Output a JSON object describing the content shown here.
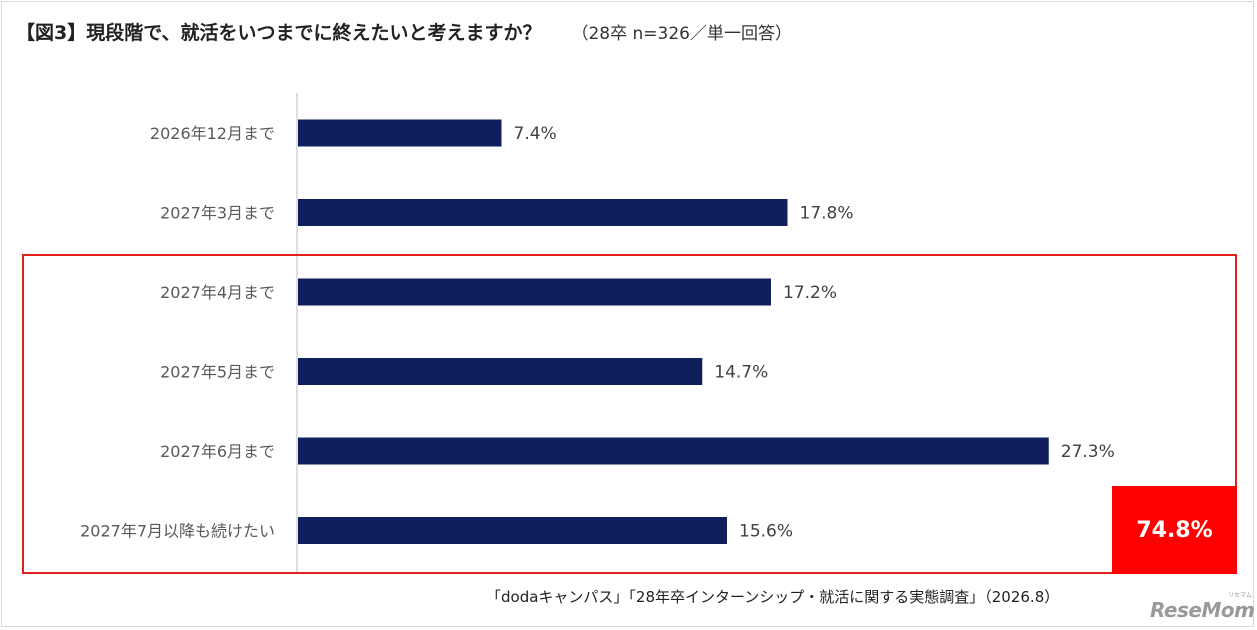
{
  "header": {
    "title": "【図3】現段階で、就活をいつまでに終えたいと考えますか？",
    "sample_note": "（28卒 n=326／単一回答）"
  },
  "chart_data": {
    "type": "bar",
    "orientation": "horizontal",
    "categories": [
      "2026年12月まで",
      "2027年3月まで",
      "2027年4月まで",
      "2027年5月まで",
      "2027年6月まで",
      "2027年7月以降も続けたい"
    ],
    "values": [
      7.4,
      17.8,
      17.2,
      14.7,
      27.3,
      15.6
    ],
    "value_labels": [
      "7.4%",
      "17.8%",
      "17.2%",
      "14.7%",
      "27.3%",
      "15.6%"
    ],
    "unit": "%",
    "xlim": [
      0,
      32
    ],
    "grid": false,
    "legend": "none",
    "bar_color": "#0e1f5b",
    "highlight": {
      "categories": [
        "2027年4月まで",
        "2027年5月まで",
        "2027年6月まで",
        "2027年7月以降も続けたい"
      ],
      "total_label": "74.8%",
      "box_color": "#e0201b",
      "badge_color": "#ff0000"
    }
  },
  "footer": {
    "source": "「dodaキャンパス」「28年卒インターンシップ・就活に関する実態調査」（2026.8）",
    "logo": "ReseMom",
    "logo_small": "リセマム"
  }
}
